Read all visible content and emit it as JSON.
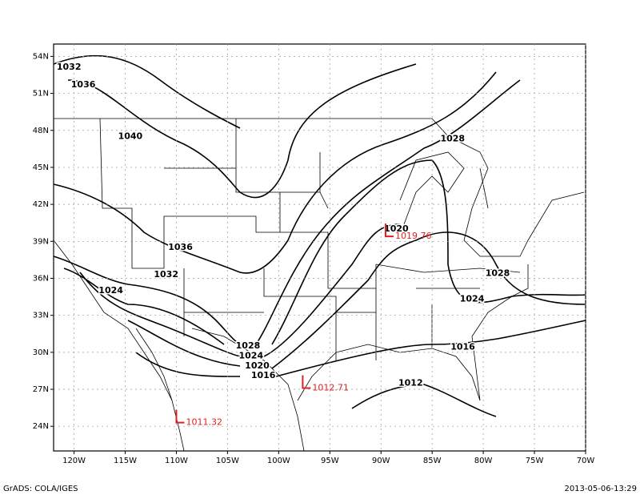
{
  "map": {
    "xlim": [
      -122,
      -70
    ],
    "ylim": [
      22,
      55
    ],
    "xticks": [
      {
        "value": -120,
        "label": "120W"
      },
      {
        "value": -115,
        "label": "115W"
      },
      {
        "value": -110,
        "label": "110W"
      },
      {
        "value": -105,
        "label": "105W"
      },
      {
        "value": -100,
        "label": "100W"
      },
      {
        "value": -95,
        "label": "95W"
      },
      {
        "value": -90,
        "label": "90W"
      },
      {
        "value": -85,
        "label": "85W"
      },
      {
        "value": -80,
        "label": "80W"
      },
      {
        "value": -75,
        "label": "75W"
      },
      {
        "value": -70,
        "label": "70W"
      }
    ],
    "yticks": [
      {
        "value": 24,
        "label": "24N"
      },
      {
        "value": 27,
        "label": "27N"
      },
      {
        "value": 30,
        "label": "30N"
      },
      {
        "value": 33,
        "label": "33N"
      },
      {
        "value": 36,
        "label": "36N"
      },
      {
        "value": 39,
        "label": "39N"
      },
      {
        "value": 42,
        "label": "42N"
      },
      {
        "value": 45,
        "label": "45N"
      },
      {
        "value": 48,
        "label": "48N"
      },
      {
        "value": 51,
        "label": "51N"
      },
      {
        "value": 54,
        "label": "54N"
      }
    ],
    "grid": true,
    "contour_labels": [
      {
        "value": 1032,
        "lon": -120.5,
        "lat": 53.1
      },
      {
        "value": 1036,
        "lon": -119.1,
        "lat": 51.7
      },
      {
        "value": 1040,
        "lon": -114.5,
        "lat": 47.5
      },
      {
        "value": 1036,
        "lon": -109.6,
        "lat": 38.5
      },
      {
        "value": 1032,
        "lon": -111.0,
        "lat": 36.3
      },
      {
        "value": 1024,
        "lon": -116.4,
        "lat": 35.0
      },
      {
        "value": 1028,
        "lon": -83.0,
        "lat": 47.3
      },
      {
        "value": 1020,
        "lon": -88.5,
        "lat": 40.0
      },
      {
        "value": 1028,
        "lon": -78.6,
        "lat": 36.4
      },
      {
        "value": 1024,
        "lon": -81.1,
        "lat": 34.3
      },
      {
        "value": 1016,
        "lon": -82.0,
        "lat": 30.4
      },
      {
        "value": 1012,
        "lon": -87.1,
        "lat": 27.5
      },
      {
        "value": 1028,
        "lon": -103.0,
        "lat": 30.5
      },
      {
        "value": 1024,
        "lon": -102.7,
        "lat": 29.7
      },
      {
        "value": 1020,
        "lon": -102.1,
        "lat": 28.9
      },
      {
        "value": 1016,
        "lon": -101.5,
        "lat": 28.1
      }
    ],
    "stations": [
      {
        "value": 1019.76,
        "lon": -89.55,
        "lat": 39.4,
        "color": "#e02020"
      },
      {
        "value": 1012.71,
        "lon": -97.65,
        "lat": 27.1,
        "color": "#e02020"
      },
      {
        "value": 1011.32,
        "lon": -110.0,
        "lat": 24.3,
        "color": "#e02020"
      }
    ]
  },
  "footer": {
    "left": "GrADS: COLA/IGES",
    "right": "2013-05-06-13:29"
  }
}
